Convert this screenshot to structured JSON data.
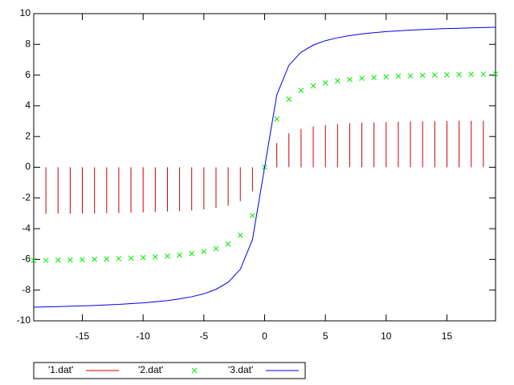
{
  "chart_data": {
    "type": "line",
    "x": [
      -19,
      -18,
      -17,
      -16,
      -15,
      -14,
      -13,
      -12,
      -11,
      -10,
      -9,
      -8,
      -7,
      -6,
      -5,
      -4,
      -3,
      -2,
      -1,
      0,
      1,
      2,
      3,
      4,
      5,
      6,
      7,
      8,
      9,
      10,
      11,
      12,
      13,
      14,
      15,
      16,
      17,
      18,
      19
    ],
    "series": [
      {
        "name": "'1.dat'",
        "color": "#cc0000",
        "style": "impulses",
        "values": [
          null,
          -3.03,
          -3.02,
          -3.02,
          -3.01,
          -3.0,
          -2.99,
          -2.98,
          -2.96,
          -2.94,
          -2.92,
          -2.89,
          -2.86,
          -2.81,
          -2.75,
          -2.65,
          -2.5,
          -2.21,
          -1.57,
          0,
          1.57,
          2.21,
          2.5,
          2.65,
          2.75,
          2.81,
          2.86,
          2.89,
          2.92,
          2.94,
          2.96,
          2.98,
          2.99,
          3.0,
          3.01,
          3.02,
          3.02,
          3.03,
          null
        ]
      },
      {
        "name": "'2.dat'",
        "color": "#00ee00",
        "style": "points",
        "values": [
          -6.07,
          -6.06,
          -6.05,
          -6.03,
          -6.02,
          -6.0,
          -5.98,
          -5.95,
          -5.92,
          -5.88,
          -5.84,
          -5.79,
          -5.72,
          -5.62,
          -5.49,
          -5.3,
          -5.0,
          -4.43,
          -3.14,
          0,
          3.14,
          4.43,
          5.0,
          5.3,
          5.49,
          5.62,
          5.72,
          5.79,
          5.84,
          5.88,
          5.92,
          5.95,
          5.98,
          6.0,
          6.02,
          6.03,
          6.05,
          6.06,
          6.07
        ]
      },
      {
        "name": "'3.dat'",
        "color": "#0000ee",
        "style": "lines",
        "values": [
          -9.11,
          -9.09,
          -9.07,
          -9.05,
          -9.03,
          -9.0,
          -8.96,
          -8.93,
          -8.88,
          -8.83,
          -8.76,
          -8.68,
          -8.57,
          -8.43,
          -8.24,
          -7.95,
          -7.49,
          -6.64,
          -4.71,
          0,
          4.71,
          6.64,
          7.49,
          7.95,
          8.24,
          8.43,
          8.57,
          8.68,
          8.76,
          8.83,
          8.88,
          8.93,
          8.96,
          9.0,
          9.03,
          9.05,
          9.07,
          9.09,
          9.11
        ]
      }
    ],
    "xlim": [
      -19,
      19
    ],
    "ylim": [
      -10,
      10
    ],
    "xticks": [
      -15,
      -10,
      -5,
      0,
      5,
      10,
      15
    ],
    "yticks": [
      -10,
      -8,
      -6,
      -4,
      -2,
      0,
      2,
      4,
      6,
      8,
      10
    ],
    "legend": "bottom"
  }
}
